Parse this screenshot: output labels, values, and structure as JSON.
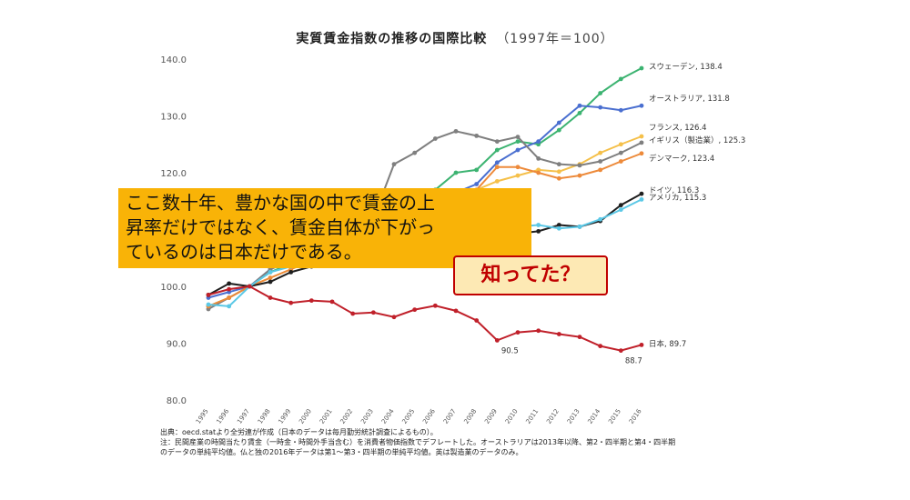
{
  "header": {
    "title": "実質賃金指数の推移の国際比較",
    "subtitle": "（1997年＝100）"
  },
  "overlay": {
    "lines": [
      "ここ数十年、豊かな国の中で賃金の上",
      "昇率だけではなく、賃金自体が下がっ",
      "ているのは日本だけである。"
    ]
  },
  "callout": {
    "text": "知ってた？"
  },
  "notes": {
    "lines": [
      "出典：oecd.statより全労連が作成（日本のデータは毎月勤労統計調査によるもの）。",
      "注：民間産業の時間当たり賃金（一時金・時間外手当含む）を消費者物価指数でデフレートした。オーストラリアは2013年以降、第2・四半期と第4・四半期",
      "のデータの単純平均値。仏と独の2016年データは第1～第3・四半期の単純平均値。英は製造業のデータのみ。"
    ]
  },
  "chart_data": {
    "type": "line",
    "x": [
      1995,
      1996,
      1997,
      1998,
      1999,
      2000,
      2001,
      2002,
      2003,
      2004,
      2005,
      2006,
      2007,
      2008,
      2009,
      2010,
      2011,
      2012,
      2013,
      2014,
      2015,
      2016
    ],
    "ylim": [
      80,
      140
    ],
    "yticks": [
      "80.0",
      "90.0",
      "100.0",
      "110.0",
      "120.0",
      "130.0",
      "140.0"
    ],
    "grid": false,
    "series": [
      {
        "name": "スウェーデン",
        "end_label": "スウェーデン, 138.4",
        "color": "#3cb371",
        "values": [
          96.5,
          98,
          100,
          102.5,
          104,
          106,
          107,
          109,
          111,
          113,
          115,
          117,
          120,
          120.5,
          124,
          125.5,
          125,
          127.5,
          130.5,
          134,
          136.5,
          138.4
        ]
      },
      {
        "name": "オーストラリア",
        "end_label": "オーストラリア, 131.8",
        "color": "#4a6fd0",
        "values": [
          98,
          99,
          100,
          103,
          104.5,
          106.5,
          108,
          110,
          112,
          113.5,
          114.5,
          116,
          116.5,
          118,
          121.8,
          124,
          125.5,
          128.8,
          131.8,
          131.5,
          131,
          131.8
        ]
      },
      {
        "name": "フランス",
        "end_label": "フランス, 126.4",
        "color": "#f5c04a",
        "values": [
          96.5,
          98,
          100,
          101.5,
          103,
          104.5,
          106,
          108,
          110,
          111,
          112.5,
          114,
          115.5,
          117,
          118.5,
          119.5,
          120.5,
          120.2,
          121.5,
          123.5,
          125,
          126.4
        ]
      },
      {
        "name": "イギリス（製造業）",
        "end_label": "イギリス（製造業）, 125.3",
        "color": "#7f7f7f",
        "values": [
          96,
          98,
          100,
          103,
          104.5,
          106.5,
          108,
          109.5,
          112,
          121.5,
          123.5,
          126,
          127.3,
          126.5,
          125.5,
          126.3,
          122.5,
          121.5,
          121.3,
          122,
          123.5,
          125.3
        ]
      },
      {
        "name": "デンマーク",
        "end_label": "デンマーク, 123.4",
        "color": "#ed8a3a",
        "values": [
          96.5,
          98,
          100,
          101.5,
          103,
          104.5,
          106,
          108,
          110,
          111.5,
          113,
          114.5,
          116,
          117,
          121,
          121,
          120,
          119,
          119.5,
          120.5,
          122,
          123.4
        ]
      },
      {
        "name": "ドイツ",
        "end_label": "ドイツ, 116.3",
        "color": "#1f1f1f",
        "values": [
          98.5,
          100.5,
          100,
          100.8,
          102.5,
          103.5,
          104.5,
          105.5,
          106,
          106.5,
          107,
          107.5,
          108,
          108.5,
          109,
          109.3,
          109.7,
          110.8,
          110.5,
          111.5,
          114.3,
          116.3
        ]
      },
      {
        "name": "アメリカ",
        "end_label": "アメリカ, 115.3",
        "color": "#5bc8e6",
        "values": [
          96.8,
          96.5,
          100,
          102.5,
          103.5,
          104.5,
          105.5,
          106,
          106.5,
          107,
          107.5,
          108,
          108.5,
          109,
          109.5,
          110.5,
          110.8,
          110.2,
          110.5,
          111.8,
          113.5,
          115.3
        ]
      },
      {
        "name": "日本",
        "end_label": "日本, 89.7",
        "color": "#c0202a",
        "values": [
          98.5,
          99.5,
          100,
          98,
          97.1,
          97.5,
          97.3,
          95.2,
          95.4,
          94.6,
          95.9,
          96.6,
          95.7,
          94,
          90.5,
          91.9,
          92.2,
          91.6,
          91.1,
          89.5,
          88.7,
          89.7
        ]
      }
    ],
    "annotations": [
      {
        "series": "日本",
        "x": 2009,
        "text": "90.5"
      },
      {
        "series": "日本",
        "x": 2015,
        "text": "88.7"
      }
    ]
  }
}
